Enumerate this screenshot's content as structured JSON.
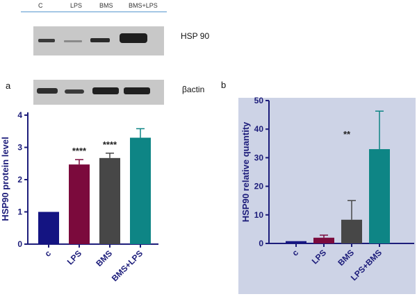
{
  "blot": {
    "lanes": [
      "C",
      "LPS",
      "BMS",
      "BMS+LPS"
    ],
    "hsp_label": "HSP 90",
    "actin_label": "βactin"
  },
  "panel_a": {
    "letter": "a",
    "chart_data": {
      "type": "bar",
      "categories": [
        "c",
        "LPS",
        "BMS",
        "BMS+LPS"
      ],
      "values": [
        1.0,
        2.47,
        2.67,
        3.3
      ],
      "errors": [
        0,
        0.15,
        0.15,
        0.28
      ],
      "annotations": [
        "",
        "****",
        "****",
        ""
      ],
      "colors": [
        "#141482",
        "#7b0a3c",
        "#474747",
        "#0e8585"
      ],
      "ylabel": "HSP90 protein level",
      "ylim": [
        0,
        4
      ],
      "yticks": [
        "0",
        "1",
        "2",
        "3",
        "4"
      ]
    }
  },
  "panel_b": {
    "letter": "b",
    "chart_data": {
      "type": "bar",
      "categories": [
        "c",
        "LPS",
        "BMS",
        "LPS+BMS"
      ],
      "values": [
        0.8,
        2.0,
        8.3,
        33.0
      ],
      "errors": [
        0,
        0.9,
        6.7,
        13.3
      ],
      "annotation": "**",
      "colors": [
        "#141482",
        "#7b0a3c",
        "#474747",
        "#0e8585"
      ],
      "background": "#cdd3e6",
      "ylabel": "HSP90 relative quantity",
      "ylim": [
        0,
        50
      ],
      "yticks": [
        "0",
        "10",
        "20",
        "30",
        "40",
        "50"
      ]
    }
  }
}
